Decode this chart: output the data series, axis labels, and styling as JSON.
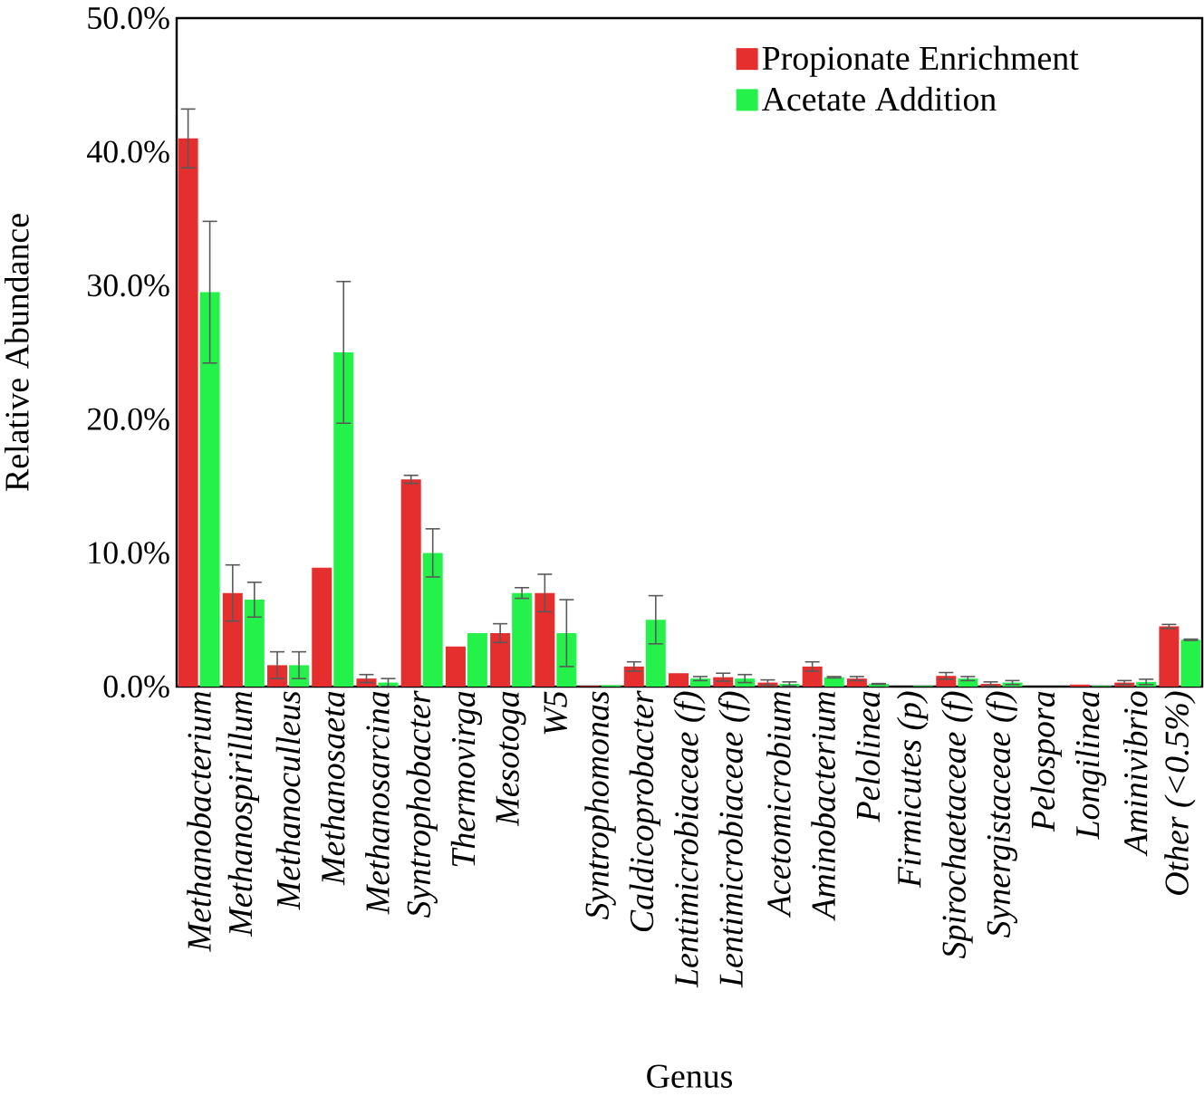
{
  "chart_data": {
    "type": "bar",
    "xlabel": "Genus",
    "ylabel": "Relative Abundance",
    "categories": [
      "Methanobacterium",
      "Methanospirillum",
      "Methanoculleus",
      "Methanosaeta",
      "Methanosarcina",
      "Syntrophobacter",
      "Thermovirga",
      "Mesotoga",
      "W5",
      "Syntrophomonas",
      "Caldicoprobacter",
      "Lentimicrobiaceae (f)",
      "Lentimicrobiaceae (f)",
      "Acetomicrobium",
      "Aminobacterium",
      "Pelolinea",
      "Firmicutes (p)",
      "Spirochaetaceae (f)",
      "Synergistaceae (f)",
      "Pelospora",
      "Longilinea",
      "Aminivibrio",
      "Other (<0.5%)"
    ],
    "series": [
      {
        "name": "Propionate Enrichment",
        "color": "#e52e2e",
        "values": [
          41.0,
          7.0,
          1.6,
          8.9,
          0.6,
          15.5,
          3.0,
          4.0,
          7.0,
          0.05,
          1.5,
          1.0,
          0.7,
          0.3,
          1.5,
          0.6,
          0,
          0.8,
          0.2,
          0,
          0.15,
          0.3,
          4.5
        ],
        "errors": [
          2.2,
          2.1,
          1.0,
          null,
          0.3,
          0.3,
          null,
          0.7,
          1.4,
          null,
          0.35,
          null,
          0.3,
          0.2,
          0.35,
          0.15,
          null,
          0.25,
          0.15,
          null,
          null,
          0.15,
          0.15
        ]
      },
      {
        "name": "Acetate Addition",
        "color": "#24f24a",
        "values": [
          29.5,
          6.5,
          1.6,
          25.0,
          0.3,
          10.0,
          4.0,
          7.0,
          4.0,
          0.1,
          5.0,
          0.6,
          0.6,
          0.2,
          0.7,
          0.2,
          0.05,
          0.6,
          0.3,
          0,
          0.05,
          0.35,
          3.5
        ],
        "errors": [
          5.3,
          1.3,
          1.0,
          5.3,
          0.3,
          1.8,
          null,
          0.4,
          2.5,
          null,
          1.8,
          0.15,
          0.3,
          0.15,
          0.05,
          0.03,
          null,
          0.15,
          0.15,
          null,
          null,
          0.2,
          0.05
        ]
      }
    ],
    "ylim": [
      0,
      50
    ],
    "yticks": [
      {
        "value": 0,
        "label": "0.0%"
      },
      {
        "value": 10,
        "label": "10.0%"
      },
      {
        "value": 20,
        "label": "20.0%"
      },
      {
        "value": 30,
        "label": "30.0%"
      },
      {
        "value": 40,
        "label": "40.0%"
      },
      {
        "value": 50,
        "label": "50.0%"
      }
    ],
    "legend": "top right",
    "grid": false
  }
}
